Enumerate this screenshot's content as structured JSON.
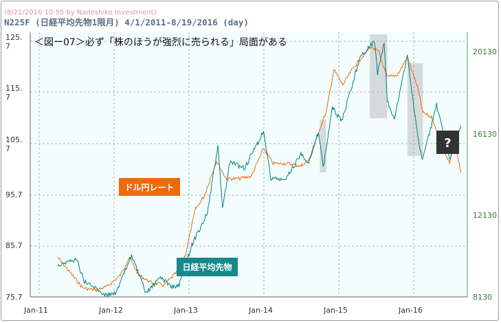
{
  "chart_data": {
    "type": "line",
    "watermark": "(8/21/2016 10:55 by Nadeshiko Investment)",
    "title": "N225F (日経平均先物1限月) 4/1/2011-8/19/2016 (day)",
    "heading": "＜図ー07＞必ず「株のほうが強烈に売られる」局面がある",
    "x_ticks": [
      "Jan-11",
      "Jan-12",
      "Jan-13",
      "Jan-14",
      "Jan-15",
      "Jan-16"
    ],
    "y_left": {
      "ticks": [
        "75.7",
        "85.7",
        "95.7",
        "105.\n7",
        "115.\n7",
        "125.\n7"
      ],
      "range": [
        75.7,
        125.7
      ]
    },
    "y_right": {
      "ticks": [
        "8130",
        "12130",
        "16130",
        "20130"
      ],
      "range": [
        8130,
        20130
      ]
    },
    "series": [
      {
        "name": "ドル円レート",
        "axis": "left",
        "color": "#f06a0a",
        "points": [
          [
            "2011-04-01",
            83.5
          ],
          [
            "2011-06-01",
            80.5
          ],
          [
            "2011-08-01",
            77.5
          ],
          [
            "2011-10-01",
            77.0
          ],
          [
            "2011-12-01",
            77.8
          ],
          [
            "2012-02-01",
            80.0
          ],
          [
            "2012-03-15",
            83.5
          ],
          [
            "2012-05-01",
            80.0
          ],
          [
            "2012-07-01",
            78.5
          ],
          [
            "2012-09-01",
            78.0
          ],
          [
            "2012-11-01",
            80.5
          ],
          [
            "2012-12-15",
            84.0
          ],
          [
            "2013-02-01",
            93.0
          ],
          [
            "2013-03-15",
            95.5
          ],
          [
            "2013-05-15",
            102.5
          ],
          [
            "2013-07-01",
            99.0
          ],
          [
            "2013-09-01",
            99.0
          ],
          [
            "2013-11-01",
            99.5
          ],
          [
            "2013-12-31",
            105.0
          ],
          [
            "2014-02-15",
            102.0
          ],
          [
            "2014-05-01",
            102.0
          ],
          [
            "2014-07-01",
            101.5
          ],
          [
            "2014-08-15",
            103.0
          ],
          [
            "2014-10-01",
            109.0
          ],
          [
            "2014-10-31",
            112.0
          ],
          [
            "2014-12-08",
            120.5
          ],
          [
            "2015-01-20",
            117.5
          ],
          [
            "2015-03-15",
            121.0
          ],
          [
            "2015-06-05",
            125.0
          ],
          [
            "2015-07-15",
            124.0
          ],
          [
            "2015-08-24",
            119.0
          ],
          [
            "2015-10-15",
            119.5
          ],
          [
            "2015-12-01",
            123.0
          ],
          [
            "2016-01-20",
            117.0
          ],
          [
            "2016-02-15",
            112.0
          ],
          [
            "2016-04-01",
            111.0
          ],
          [
            "2016-05-01",
            107.0
          ],
          [
            "2016-06-24",
            102.0
          ],
          [
            "2016-07-20",
            106.0
          ],
          [
            "2016-08-19",
            100.2
          ]
        ]
      },
      {
        "name": "日経平均先物",
        "axis": "right",
        "color": "#008080",
        "points": [
          [
            "2011-04-01",
            9700
          ],
          [
            "2011-07-01",
            10000
          ],
          [
            "2011-08-10",
            8900
          ],
          [
            "2011-11-25",
            8200
          ],
          [
            "2012-01-15",
            8400
          ],
          [
            "2012-03-27",
            10200
          ],
          [
            "2012-06-04",
            8300
          ],
          [
            "2012-08-15",
            9100
          ],
          [
            "2012-10-15",
            8600
          ],
          [
            "2012-11-14",
            8700
          ],
          [
            "2013-01-15",
            10700
          ],
          [
            "2013-04-01",
            12300
          ],
          [
            "2013-05-22",
            15600
          ],
          [
            "2013-06-13",
            12500
          ],
          [
            "2013-07-20",
            14800
          ],
          [
            "2013-09-30",
            14500
          ],
          [
            "2013-12-30",
            16300
          ],
          [
            "2014-02-04",
            14000
          ],
          [
            "2014-04-15",
            13900
          ],
          [
            "2014-06-30",
            15200
          ],
          [
            "2014-08-08",
            14800
          ],
          [
            "2014-09-25",
            16300
          ],
          [
            "2014-10-17",
            14500
          ],
          [
            "2014-11-30",
            17500
          ],
          [
            "2015-01-15",
            16800
          ],
          [
            "2015-04-15",
            20000
          ],
          [
            "2015-06-24",
            20800
          ],
          [
            "2015-07-09",
            19200
          ],
          [
            "2015-08-10",
            20700
          ],
          [
            "2015-08-25",
            17800
          ],
          [
            "2015-09-29",
            16900
          ],
          [
            "2015-12-01",
            20100
          ],
          [
            "2016-01-21",
            16000
          ],
          [
            "2016-02-12",
            14900
          ],
          [
            "2016-04-22",
            17600
          ],
          [
            "2016-06-24",
            14900
          ],
          [
            "2016-08-19",
            16600
          ]
        ]
      }
    ],
    "highlights": [
      [
        "2014-10-01",
        "2014-10-31"
      ],
      [
        "2015-06-01",
        "2015-08-25"
      ],
      [
        "2015-12-01",
        "2016-02-15"
      ]
    ],
    "labels": {
      "yen_badge": {
        "text": "ドル円レート",
        "color": "#f06a0a"
      },
      "nikkei_badge": {
        "text": "日経平均先物",
        "color": "#148a8a"
      },
      "question_badge": {
        "text": "?",
        "color": "#333333"
      }
    },
    "grid": true,
    "background": "#f3fdfd"
  }
}
